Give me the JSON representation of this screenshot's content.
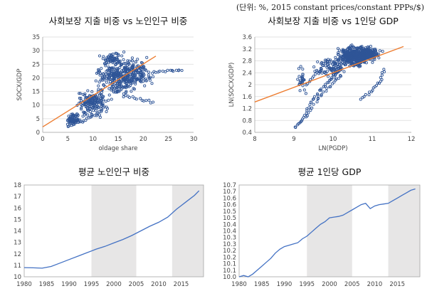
{
  "note": "(단위: %, 2015 constant prices/constant PPPs/$)",
  "colors": {
    "marker": "#2F5597",
    "trend": "#ED7D31",
    "line": "#4472C4",
    "shade": "#E7E6E6",
    "grid": "#D9D9D9",
    "axis": "#A6A6A6"
  },
  "chart_data": [
    {
      "id": "c1",
      "type": "scatter",
      "title": "사회보장 지출 비중 vs 노인인구 비중",
      "xlabel": "oldage share",
      "ylabel": "SOCX/GDP",
      "xlim": [
        0,
        30
      ],
      "ylim": [
        0,
        35
      ],
      "xticks": [
        "0",
        "5",
        "10",
        "15",
        "20",
        "25",
        "30"
      ],
      "yticks": [
        "0",
        "5",
        "10",
        "15",
        "20",
        "25",
        "30",
        "35"
      ],
      "trendline": {
        "x": [
          0,
          22.5
        ],
        "y": [
          2.0,
          28.0
        ]
      },
      "clusters": [
        {
          "cx": 15,
          "cy": 20,
          "sx": 3.2,
          "sy": 4.5,
          "n": 260
        },
        {
          "cx": 10,
          "cy": 11,
          "sx": 2.5,
          "sy": 4.0,
          "n": 170
        },
        {
          "cx": 6,
          "cy": 5,
          "sx": 1.2,
          "sy": 1.8,
          "n": 70
        },
        {
          "cx": 19,
          "cy": 22,
          "sx": 2.5,
          "sy": 4.0,
          "n": 120
        },
        {
          "cx": 14,
          "cy": 27,
          "sx": 2.0,
          "sy": 2.5,
          "n": 60
        }
      ],
      "paths": [
        {
          "x": [
            22,
            24,
            26,
            27.5
          ],
          "y": [
            22,
            22.5,
            22.8,
            22.5
          ],
          "n": 14
        },
        {
          "x": [
            5,
            7,
            9,
            11
          ],
          "y": [
            2,
            3.5,
            5,
            7
          ],
          "n": 18
        },
        {
          "x": [
            16,
            19,
            22
          ],
          "y": [
            14,
            12,
            11
          ],
          "n": 14
        }
      ]
    },
    {
      "id": "c2",
      "type": "scatter",
      "title": "사회보장 지출 비중 vs 1인당 GDP",
      "xlabel": "LN(PGDP)",
      "ylabel": "LN(SOCX/GDP)",
      "xlim": [
        8,
        12
      ],
      "ylim": [
        0.4,
        3.6
      ],
      "xticks": [
        "8",
        "9",
        "10",
        "11",
        "12"
      ],
      "yticks": [
        "0.4",
        "0.8",
        "1.2",
        "1.6",
        "2",
        "2.4",
        "2.8",
        "3.2",
        "3.6"
      ],
      "trendline": {
        "x": [
          8,
          11.8
        ],
        "y": [
          1.42,
          3.28
        ]
      },
      "clusters": [
        {
          "cx": 10.55,
          "cy": 2.95,
          "sx": 0.35,
          "sy": 0.25,
          "n": 380
        },
        {
          "cx": 10.9,
          "cy": 3.05,
          "sx": 0.25,
          "sy": 0.18,
          "n": 160
        },
        {
          "cx": 9.9,
          "cy": 2.6,
          "sx": 0.3,
          "sy": 0.3,
          "n": 90
        },
        {
          "cx": 9.2,
          "cy": 2.1,
          "sx": 0.08,
          "sy": 0.4,
          "n": 30
        }
      ],
      "paths": [
        {
          "x": [
            9.05,
            9.25,
            9.45,
            9.7,
            9.95,
            10.2
          ],
          "y": [
            0.55,
            0.9,
            1.4,
            1.85,
            2.2,
            2.5
          ],
          "n": 40
        },
        {
          "x": [
            9.3,
            9.6,
            9.9,
            10.2
          ],
          "y": [
            0.9,
            1.5,
            1.9,
            2.3
          ],
          "n": 22
        },
        {
          "x": [
            10.7,
            11.0,
            11.2,
            11.3
          ],
          "y": [
            1.5,
            1.8,
            2.1,
            2.5
          ],
          "n": 20
        },
        {
          "x": [
            9.3,
            9.5,
            9.7
          ],
          "y": [
            2.0,
            2.25,
            2.5
          ],
          "n": 10
        }
      ]
    },
    {
      "id": "c3",
      "type": "line",
      "title": "평균 노인인구 비중",
      "ylim": [
        10,
        18
      ],
      "xlim": [
        1980,
        2020
      ],
      "yticks": [
        "10",
        "11",
        "12",
        "13",
        "14",
        "15",
        "16",
        "17",
        "18"
      ],
      "xticks": [
        "1980",
        "1985",
        "1990",
        "1995",
        "2000",
        "2005",
        "2010",
        "2015"
      ],
      "shaded": [
        [
          1995,
          2005
        ],
        [
          2013,
          2020
        ]
      ],
      "x": [
        1980,
        1982,
        1984,
        1986,
        1988,
        1990,
        1992,
        1994,
        1996,
        1998,
        2000,
        2002,
        2004,
        2006,
        2008,
        2010,
        2012,
        2014,
        2016,
        2018,
        2019
      ],
      "values": [
        10.8,
        10.78,
        10.75,
        10.9,
        11.2,
        11.5,
        11.8,
        12.1,
        12.4,
        12.65,
        12.95,
        13.25,
        13.6,
        14.0,
        14.4,
        14.75,
        15.2,
        15.9,
        16.5,
        17.1,
        17.5
      ]
    },
    {
      "id": "c4",
      "type": "line",
      "title": "평균 1인당 GDP",
      "ylim": [
        10.0,
        10.7
      ],
      "xlim": [
        1980,
        2020
      ],
      "yticks": [
        "10.0",
        "10.1",
        "10.1",
        "10.2",
        "10.2",
        "10.3",
        "10.3",
        "10.4",
        "10.4",
        "10.5",
        "10.5",
        "10.6",
        "10.6",
        "10.7",
        "10.7"
      ],
      "xticks": [
        "1980",
        "1985",
        "1990",
        "1995",
        "2000",
        "2005",
        "2010",
        "2015"
      ],
      "shaded": [
        [
          1995,
          2005
        ],
        [
          2013,
          2020
        ]
      ],
      "x": [
        1980,
        1981,
        1982,
        1983,
        1984,
        1985,
        1986,
        1987,
        1988,
        1989,
        1990,
        1991,
        1992,
        1993,
        1994,
        1995,
        1996,
        1997,
        1998,
        1999,
        2000,
        2001,
        2002,
        2003,
        2004,
        2005,
        2006,
        2007,
        2008,
        2009,
        2010,
        2011,
        2012,
        2013,
        2014,
        2015,
        2016,
        2017,
        2018,
        2019
      ],
      "values": [
        10.0,
        10.01,
        10.0,
        10.02,
        10.05,
        10.08,
        10.11,
        10.14,
        10.18,
        10.21,
        10.23,
        10.24,
        10.25,
        10.26,
        10.29,
        10.31,
        10.34,
        10.37,
        10.4,
        10.42,
        10.45,
        10.455,
        10.46,
        10.47,
        10.49,
        10.51,
        10.53,
        10.55,
        10.56,
        10.52,
        10.54,
        10.55,
        10.555,
        10.56,
        10.58,
        10.6,
        10.62,
        10.64,
        10.66,
        10.67
      ]
    }
  ]
}
